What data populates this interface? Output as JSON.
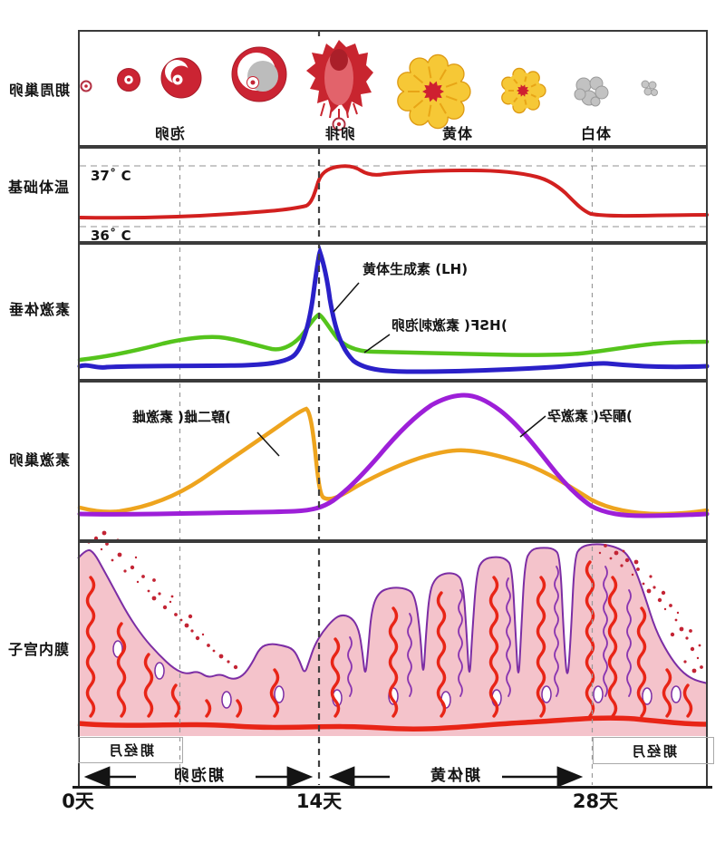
{
  "row_labels": {
    "ovarian_cycle": "卵巢周期",
    "basal_temp": "基础体温",
    "pituitary": "垂体激素",
    "ovarian_hormone": "卵巢激素",
    "endometrium": "子宫内膜"
  },
  "ovarian_cycle_stages": {
    "follicle": "卵泡",
    "ovulation": "排卵",
    "corpus_luteum": "黄体",
    "corpus_albicans": "白体"
  },
  "basal_temp": {
    "high": "37˚ C",
    "low": "36˚ C"
  },
  "pituitary": {
    "lh_label": "黄体生成素 (LH)",
    "fsh_label": "卵泡刺激素 (FSH)"
  },
  "ovarian_hormone": {
    "estrogen_label": "雌激素 (雌二醇)",
    "progesterone_label": "孕激素 (孕酮)"
  },
  "timeline": {
    "menstrual": "月经期",
    "menstrual_next": "月经期",
    "follicular": "卵泡期",
    "luteal": "黄体期",
    "day0": "0天",
    "day14": "14天",
    "day28": "28天"
  },
  "colors": {
    "temperature": "#d2201f",
    "lh": "#2a20c8",
    "fsh": "#55c41c",
    "estrogen": "#eea41e",
    "progesterone": "#9d1fd8",
    "follicle_red": "#cb2433",
    "corpus_luteum_yellow": "#f6c836",
    "corpus_albicans_gray": "#bfbfbf",
    "endometrium_pink": "#f4c3cb",
    "gland_red": "#e82517",
    "outline_purple": "#7c2da4",
    "panel_border": "#3b3b3b"
  },
  "chart_data": [
    {
      "type": "line",
      "name": "基础体温",
      "unit": "°C",
      "ylim": [
        36,
        37.4
      ],
      "x": [
        0,
        4,
        8,
        11,
        13,
        13.5,
        14,
        15,
        17,
        21,
        24,
        25,
        26,
        27,
        28,
        34
      ],
      "y": [
        36.4,
        36.42,
        36.45,
        36.5,
        36.55,
        36.7,
        36.95,
        37.0,
        36.95,
        36.95,
        36.9,
        36.75,
        36.5,
        36.42,
        36.42,
        36.42
      ],
      "color": "#d2201f"
    },
    {
      "type": "line",
      "name": "黄体生成素 (LH)",
      "unit": "relative",
      "x": [
        0,
        6,
        10,
        12,
        13,
        13.2,
        14,
        15,
        16,
        18,
        22,
        26,
        28,
        30,
        34
      ],
      "y": [
        10,
        11,
        12,
        20,
        45,
        75,
        100,
        60,
        25,
        10,
        7,
        8,
        10,
        9,
        9
      ],
      "color": "#2a20c8"
    },
    {
      "type": "line",
      "name": "卵泡刺激素 (FSH)",
      "unit": "relative",
      "x": [
        0,
        3,
        6,
        7.5,
        9,
        11,
        12.5,
        13.5,
        14,
        15,
        16,
        18,
        22,
        26,
        28,
        31,
        34
      ],
      "y": [
        18,
        25,
        30,
        32,
        28,
        22,
        26,
        42,
        48,
        35,
        24,
        21,
        19,
        18,
        21,
        26,
        27
      ],
      "color": "#55c41c"
    },
    {
      "type": "line",
      "name": "雌激素 (雌二醇)",
      "unit": "relative",
      "x": [
        0,
        1,
        4,
        7,
        10,
        12,
        12.6,
        13.3,
        14,
        15,
        17,
        19,
        20.5,
        22,
        24,
        26,
        27,
        28,
        30,
        34
      ],
      "y": [
        8,
        6,
        12,
        28,
        52,
        72,
        78,
        55,
        15,
        20,
        38,
        48,
        52,
        48,
        38,
        18,
        10,
        8,
        9,
        12
      ],
      "color": "#eea41e"
    },
    {
      "type": "line",
      "name": "孕激素 (孕酮)",
      "unit": "relative",
      "x": [
        0,
        6,
        11,
        13,
        14,
        15,
        16,
        17,
        18,
        19,
        20,
        21,
        22,
        23,
        24,
        26,
        27,
        28,
        31,
        34
      ],
      "y": [
        2,
        2,
        2,
        3,
        5,
        10,
        20,
        35,
        52,
        68,
        80,
        86,
        86,
        78,
        62,
        22,
        8,
        3,
        2,
        2
      ],
      "color": "#9d1fd8"
    },
    {
      "type": "area",
      "name": "子宫内膜厚度",
      "unit": "relative",
      "x": [
        0,
        2,
        4,
        6,
        8,
        10,
        12,
        14,
        16,
        18,
        20,
        22,
        24,
        26,
        27,
        28,
        30,
        32,
        34
      ],
      "y": [
        9,
        7.5,
        5,
        3.2,
        3,
        3.5,
        4.5,
        5.5,
        6.5,
        7.5,
        8.2,
        8.8,
        9.2,
        9.4,
        9.3,
        9.0,
        7.5,
        5.5,
        3.5
      ],
      "color": "#f4c3cb"
    },
    {
      "type": "table",
      "name": "x_axis",
      "title": "天",
      "ticks": [
        0,
        14,
        28
      ]
    }
  ]
}
